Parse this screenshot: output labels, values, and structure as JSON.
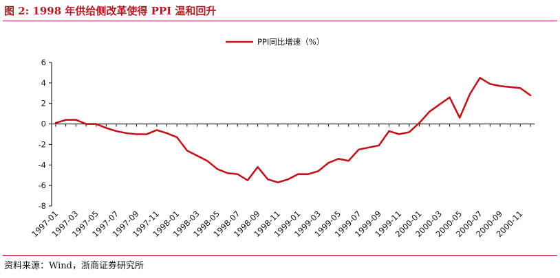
{
  "figure": {
    "title": "图 2:   1998 年供给侧改革使得 PPI 温和回升",
    "source": "资料来源：Wind，浙商证券研究所"
  },
  "chart_data": {
    "type": "line",
    "title": "",
    "xlabel": "",
    "ylabel": "",
    "legend": "top-center",
    "grid": false,
    "ylim": [
      -8,
      6
    ],
    "yticks": [
      -8,
      -6,
      -4,
      -2,
      0,
      2,
      4,
      6
    ],
    "series_color": "#c0141e",
    "x": [
      "1997-01",
      "1997-02",
      "1997-03",
      "1997-04",
      "1997-05",
      "1997-06",
      "1997-07",
      "1997-08",
      "1997-09",
      "1997-10",
      "1997-11",
      "1997-12",
      "1998-01",
      "1998-02",
      "1998-03",
      "1998-04",
      "1998-05",
      "1998-06",
      "1998-07",
      "1998-08",
      "1998-09",
      "1998-10",
      "1998-11",
      "1998-12",
      "1999-01",
      "1999-02",
      "1999-03",
      "1999-04",
      "1999-05",
      "1999-06",
      "1999-07",
      "1999-08",
      "1999-09",
      "1999-10",
      "1999-11",
      "1999-12",
      "2000-01",
      "2000-02",
      "2000-03",
      "2000-04",
      "2000-05",
      "2000-06",
      "2000-07",
      "2000-08",
      "2000-09",
      "2000-10",
      "2000-11",
      "2000-12"
    ],
    "xtick_labels": [
      "1997-01",
      "1997-03",
      "1997-05",
      "1997-07",
      "1997-09",
      "1997-11",
      "1998-01",
      "1998-03",
      "1998-05",
      "1998-07",
      "1998-09",
      "1998-11",
      "1999-01",
      "1999-03",
      "1999-05",
      "1999-07",
      "1999-09",
      "1999-11",
      "2000-01",
      "2000-03",
      "2000-05",
      "2000-07",
      "2000-09",
      "2000-11"
    ],
    "series": [
      {
        "name": "PPI同比增速（%）",
        "values": [
          0.1,
          0.4,
          0.4,
          0.0,
          0.0,
          -0.4,
          -0.7,
          -0.9,
          -1.0,
          -1.0,
          -0.6,
          -0.9,
          -1.3,
          -2.6,
          -3.1,
          -3.6,
          -4.4,
          -4.8,
          -4.9,
          -5.5,
          -4.2,
          -5.4,
          -5.7,
          -5.4,
          -4.9,
          -4.9,
          -4.6,
          -3.8,
          -3.4,
          -3.6,
          -2.5,
          -2.3,
          -2.1,
          -0.7,
          -1.0,
          -0.8,
          0.1,
          1.2,
          1.9,
          2.6,
          0.6,
          2.9,
          4.5,
          3.9,
          3.7,
          3.6,
          3.5,
          2.8
        ]
      }
    ]
  }
}
